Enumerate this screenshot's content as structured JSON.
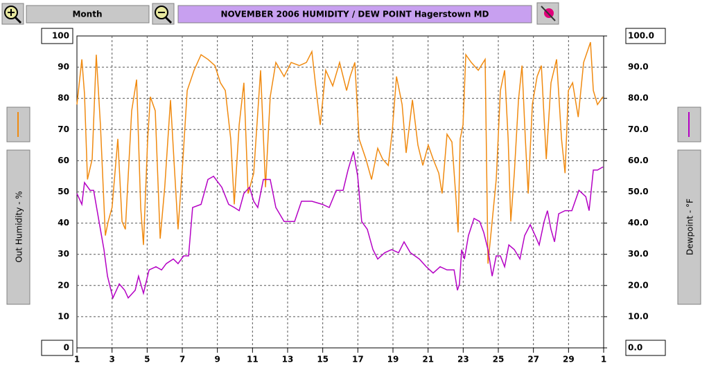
{
  "toolbar": {
    "period": "Month"
  },
  "chart_data": {
    "type": "line",
    "title": "NOVEMBER  2006  HUMIDITY / DEW POINT  Hagerstown MD",
    "y_label": "Out Humidity - %",
    "y2_label": "Dewpoint - °F",
    "xlim": [
      1,
      31
    ],
    "xticks": [
      1,
      3,
      5,
      7,
      9,
      11,
      13,
      15,
      17,
      19,
      21,
      23,
      25,
      27,
      29,
      {
        "value": 31,
        "label": "1"
      }
    ],
    "ylim": [
      0,
      100
    ],
    "yticks": [
      0,
      10,
      20,
      30,
      40,
      50,
      60,
      70,
      80,
      90,
      100
    ],
    "y2lim": [
      0,
      100
    ],
    "y2ticks": [
      {
        "value": 0,
        "label": "0.0"
      },
      {
        "value": 10,
        "label": "10.0"
      },
      {
        "value": 20,
        "label": "20.0"
      },
      {
        "value": 30,
        "label": "30.0"
      },
      {
        "value": 40,
        "label": "40.0"
      },
      {
        "value": 50,
        "label": "50.0"
      },
      {
        "value": 60,
        "label": "60.0"
      },
      {
        "value": 70,
        "label": "70.0"
      },
      {
        "value": 80,
        "label": "80.0"
      },
      {
        "value": 90,
        "label": "90.0"
      },
      {
        "value": 100,
        "label": "100.0"
      }
    ],
    "grid": true,
    "series": [
      {
        "color": "#f08a10",
        "x": [
          1.0,
          1.28,
          1.43,
          1.6,
          1.87,
          2.1,
          2.34,
          2.62,
          2.78,
          3.0,
          3.33,
          3.57,
          3.76,
          4.12,
          4.4,
          4.63,
          4.79,
          5.03,
          5.18,
          5.46,
          5.74,
          6.0,
          6.33,
          6.57,
          6.76,
          7.04,
          7.28,
          7.67,
          8.07,
          8.46,
          8.86,
          9.17,
          9.45,
          9.76,
          9.96,
          10.24,
          10.51,
          10.75,
          11.07,
          11.46,
          11.74,
          12.01,
          12.33,
          12.8,
          13.2,
          13.67,
          14.07,
          14.38,
          14.58,
          14.86,
          15.17,
          15.57,
          15.96,
          16.36,
          16.56,
          16.83,
          17.07,
          17.46,
          17.78,
          18.13,
          18.41,
          18.73,
          18.96,
          19.2,
          19.52,
          19.75,
          20.11,
          20.42,
          20.7,
          21.01,
          21.29,
          21.61,
          21.8,
          22.08,
          22.36,
          22.6,
          22.71,
          22.83,
          22.99,
          23.15,
          23.46,
          23.86,
          24.25,
          24.41,
          24.65,
          24.88,
          25.12,
          25.36,
          25.56,
          25.71,
          25.91,
          26.15,
          26.35,
          26.54,
          26.7,
          26.94,
          27.21,
          27.45,
          27.73,
          28.0,
          28.32,
          28.6,
          28.8,
          28.99,
          29.23,
          29.55,
          29.86,
          30.25,
          30.41,
          30.65,
          30.96
        ],
        "values": [
          78,
          92.5,
          81.5,
          54,
          60.5,
          94,
          71.5,
          36,
          40.5,
          45,
          67,
          40.5,
          38,
          76,
          86,
          45,
          33,
          67,
          80.5,
          76,
          35,
          51.5,
          79.5,
          56,
          38,
          60.5,
          82.5,
          89,
          94,
          92.5,
          90.5,
          85,
          82.5,
          67,
          46,
          71.5,
          85,
          49.5,
          56,
          89,
          51.5,
          80.5,
          91.5,
          87,
          91.5,
          90.5,
          91.5,
          95,
          85,
          71.5,
          89,
          84,
          91.5,
          82.5,
          87,
          91.5,
          67,
          60.5,
          54,
          64,
          60.5,
          58.5,
          69.5,
          87,
          78,
          62.5,
          79.5,
          65,
          58.5,
          65,
          60.5,
          56,
          49.5,
          68.5,
          66,
          47,
          37,
          67,
          71.5,
          94,
          91.5,
          89,
          92.5,
          27,
          40.5,
          54,
          82.5,
          89,
          67,
          40.5,
          56,
          79.5,
          90.5,
          67,
          49.5,
          78,
          87,
          90.5,
          60.5,
          85,
          92.5,
          67,
          56,
          82.5,
          85,
          74,
          91.5,
          98,
          82.5,
          78,
          80.5
        ]
      },
      {
        "color": "#b400c4",
        "axis": "y2",
        "x": [
          1.0,
          1.28,
          1.43,
          1.75,
          1.95,
          2.26,
          2.54,
          2.74,
          3.05,
          3.41,
          3.72,
          3.92,
          4.32,
          4.51,
          4.79,
          5.11,
          5.5,
          5.82,
          6.09,
          6.49,
          6.76,
          7.08,
          7.36,
          7.59,
          8.07,
          8.46,
          8.78,
          9.25,
          9.64,
          9.96,
          10.24,
          10.51,
          10.83,
          11.07,
          11.3,
          11.62,
          12.01,
          12.33,
          12.8,
          13.4,
          13.79,
          14.38,
          14.98,
          15.37,
          15.77,
          16.16,
          16.44,
          16.75,
          16.99,
          17.22,
          17.54,
          17.86,
          18.13,
          18.53,
          18.92,
          19.32,
          19.63,
          19.99,
          20.5,
          20.9,
          21.29,
          21.69,
          22.08,
          22.48,
          22.67,
          22.79,
          22.91,
          23.07,
          23.3,
          23.62,
          23.94,
          24.17,
          24.41,
          24.65,
          24.88,
          25.12,
          25.36,
          25.6,
          25.91,
          26.23,
          26.5,
          26.82,
          27.1,
          27.33,
          27.61,
          27.8,
          28.0,
          28.2,
          28.44,
          28.8,
          29.19,
          29.59,
          29.98,
          30.17,
          30.41,
          30.65,
          30.96
        ],
        "values": [
          49.5,
          46,
          53,
          50.5,
          50.5,
          40.5,
          31.5,
          23,
          16,
          20.5,
          18.5,
          16,
          18.5,
          23,
          17.5,
          25,
          26,
          25,
          27,
          28.5,
          27,
          29.5,
          29.5,
          45,
          46,
          54,
          55,
          51.5,
          46,
          45,
          44,
          49.5,
          51.5,
          47,
          45,
          54,
          54,
          45,
          40.5,
          40.5,
          47,
          47,
          46,
          45,
          50.5,
          50.5,
          57,
          63,
          55,
          40.5,
          38,
          31.5,
          28.5,
          30.5,
          31.5,
          30.5,
          34,
          30.5,
          28.5,
          26,
          24,
          26,
          25,
          25,
          18.5,
          20.5,
          31.5,
          28.5,
          36,
          41.5,
          40.5,
          37,
          31.5,
          23,
          29.5,
          29.5,
          26,
          33,
          31.5,
          28.5,
          36,
          39.5,
          36,
          33,
          40.5,
          44,
          38,
          34,
          43,
          44,
          44,
          50.5,
          48.5,
          44,
          57,
          57,
          58
        ]
      }
    ]
  }
}
